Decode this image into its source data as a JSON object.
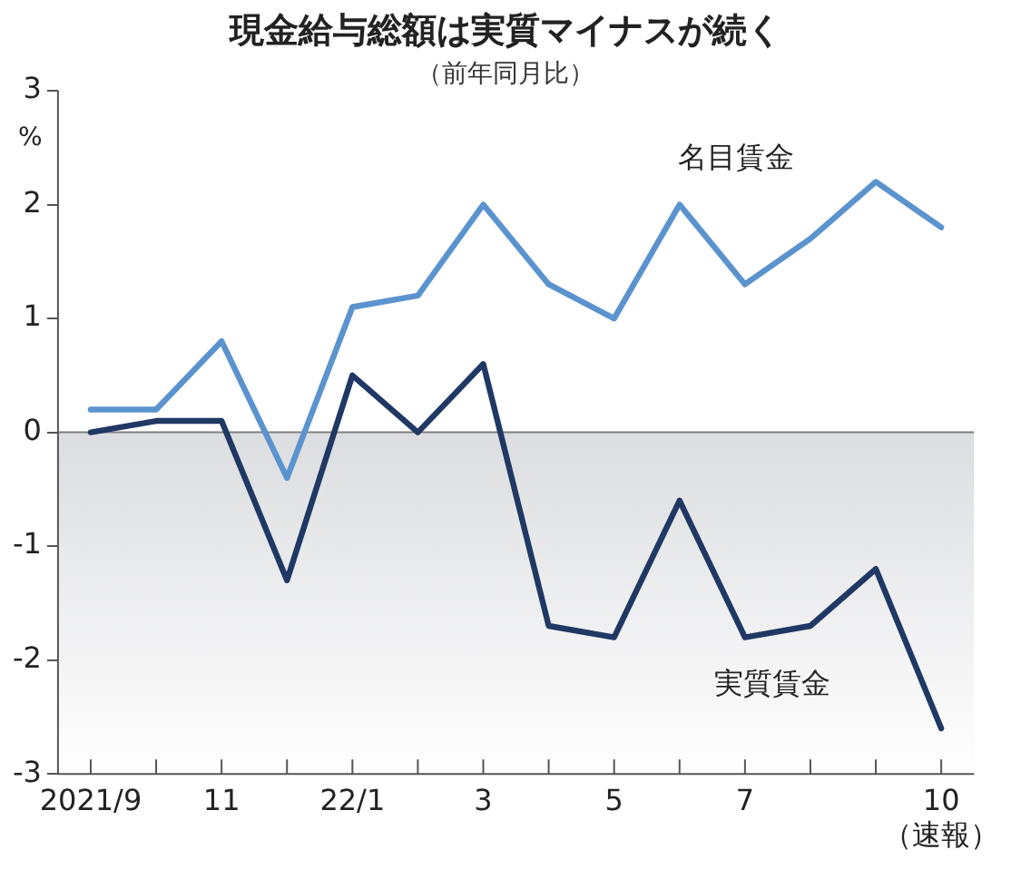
{
  "chart_data": {
    "type": "line",
    "title": "現金給与総額は実質マイナスが続く",
    "subtitle": "（前年同月比）",
    "ylabel": "%",
    "categories": [
      "2021/9",
      null,
      "11",
      null,
      "22/1",
      null,
      "3",
      null,
      "5",
      null,
      "7",
      null,
      null,
      "10\n（速報）"
    ],
    "series": [
      {
        "name": "名目賃金",
        "color": "#5b93cf",
        "values": [
          0.2,
          0.2,
          0.8,
          -0.4,
          1.1,
          1.2,
          2.0,
          1.3,
          1.0,
          2.0,
          1.3,
          1.7,
          2.2,
          1.8
        ]
      },
      {
        "name": "実質賃金",
        "color": "#1f3864",
        "values": [
          0.0,
          0.1,
          0.1,
          -1.3,
          0.5,
          0.0,
          0.6,
          -1.7,
          -1.8,
          -0.6,
          -1.8,
          -1.7,
          -1.2,
          -2.6
        ]
      }
    ],
    "ylim": [
      -3,
      3
    ],
    "yticks": [
      -3,
      -2,
      -1,
      0,
      1,
      2,
      3
    ],
    "ref_lines": [
      {
        "axis": "y",
        "value": 0,
        "color": "#808080"
      }
    ],
    "bands": [
      {
        "axis": "y",
        "from": -3,
        "to": 0,
        "color": "#dcdde0"
      }
    ],
    "grid": false,
    "legend": false,
    "marker": "none",
    "line_style": "solid"
  }
}
